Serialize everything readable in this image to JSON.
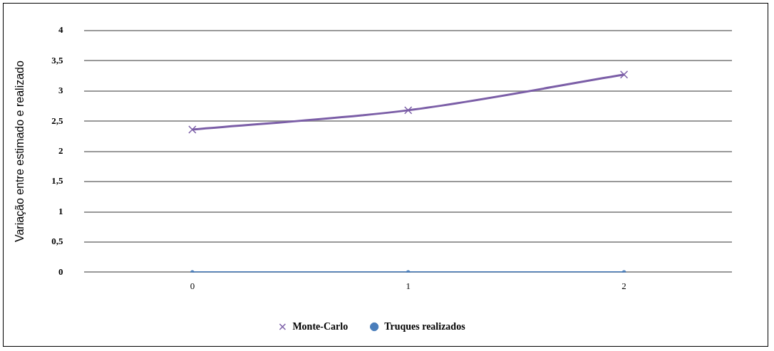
{
  "chart_data": {
    "type": "line",
    "ylabel": "Variação entre estimado e realizado",
    "categories": [
      "0",
      "1",
      "2"
    ],
    "series": [
      {
        "name": "Monte-Carlo",
        "color": "#7b5ea7",
        "values": [
          2.36,
          2.68,
          3.27
        ],
        "marker": "cross"
      },
      {
        "name": "Truques realizados",
        "color": "#4a7ebb",
        "values": [
          0,
          0,
          0
        ],
        "marker": "circle"
      }
    ],
    "ylim": [
      0,
      4
    ],
    "yticks": [
      0,
      {
        "value": 0.5,
        "label": "0,5"
      },
      1,
      {
        "value": 1.5,
        "label": "1,5"
      },
      2,
      {
        "value": 2.5,
        "label": "2,5"
      },
      3,
      {
        "value": 3.5,
        "label": "3,5"
      },
      4
    ],
    "grid": "y",
    "legend": "bottom"
  }
}
